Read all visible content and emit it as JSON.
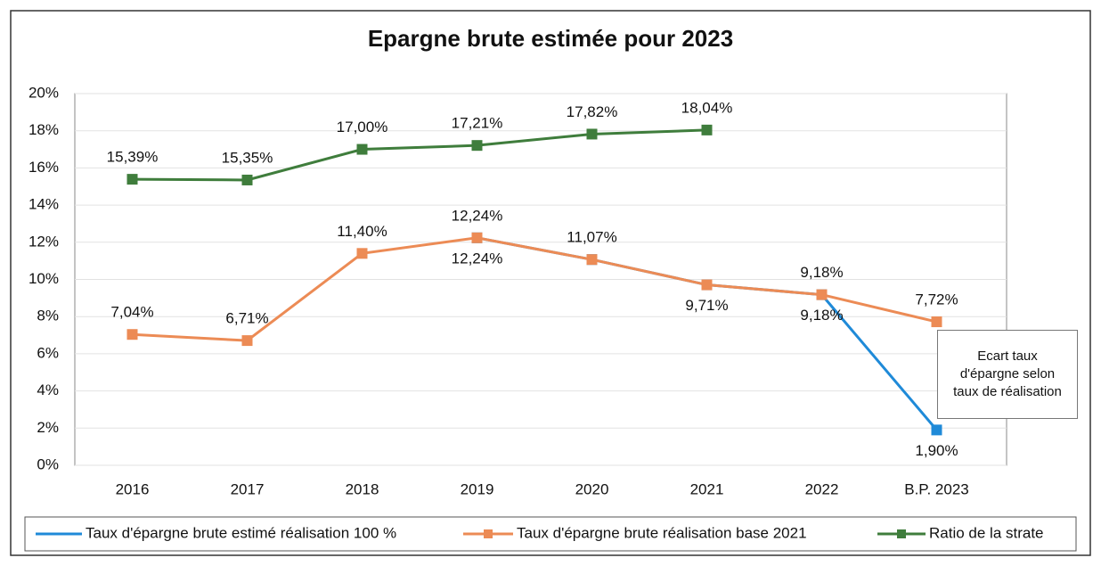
{
  "chart_data": {
    "type": "line",
    "title": "Epargne brute estimée pour 2023",
    "categories": [
      "2016",
      "2017",
      "2018",
      "2019",
      "2020",
      "2021",
      "2022",
      "B.P. 2023"
    ],
    "series": [
      {
        "name": "Taux d'épargne brute estimé réalisation 100 %",
        "color": "#1f8ad8",
        "values": [
          null,
          null,
          null,
          12.24,
          11.07,
          9.71,
          9.18,
          1.9
        ],
        "value_labels": [
          null,
          null,
          null,
          "12,24%",
          null,
          "9,71%",
          "9,18%",
          "1,90%"
        ]
      },
      {
        "name": "Taux d'épargne brute réalisation base 2021",
        "color": "#ec8b55",
        "values": [
          7.04,
          6.71,
          11.4,
          12.24,
          11.07,
          9.71,
          9.18,
          7.72
        ],
        "value_labels": [
          "7,04%",
          "6,71%",
          "11,40%",
          "12,24%",
          "11,07%",
          null,
          "9,18%",
          "7,72%"
        ]
      },
      {
        "name": "Ratio de la strate",
        "color": "#3f7d3c",
        "values": [
          15.39,
          15.35,
          17.0,
          17.21,
          17.82,
          18.04,
          null,
          null
        ],
        "value_labels": [
          "15,39%",
          "15,35%",
          "17,00%",
          "17,21%",
          "17,82%",
          "18,04%",
          null,
          null
        ]
      }
    ],
    "ylim": [
      0,
      20
    ],
    "yticks": [
      {
        "value": 0,
        "label": "0%"
      },
      {
        "value": 2,
        "label": "2%"
      },
      {
        "value": 4,
        "label": "4%"
      },
      {
        "value": 6,
        "label": "6%"
      },
      {
        "value": 8,
        "label": "8%"
      },
      {
        "value": 10,
        "label": "10%"
      },
      {
        "value": 12,
        "label": "12%"
      },
      {
        "value": 14,
        "label": "14%"
      },
      {
        "value": 16,
        "label": "16%"
      },
      {
        "value": 18,
        "label": "18%"
      },
      {
        "value": 20,
        "label": "20%"
      }
    ],
    "grid": true,
    "legend": "bottom",
    "annotation": "Ecart taux d'épargne selon taux de réalisation"
  }
}
